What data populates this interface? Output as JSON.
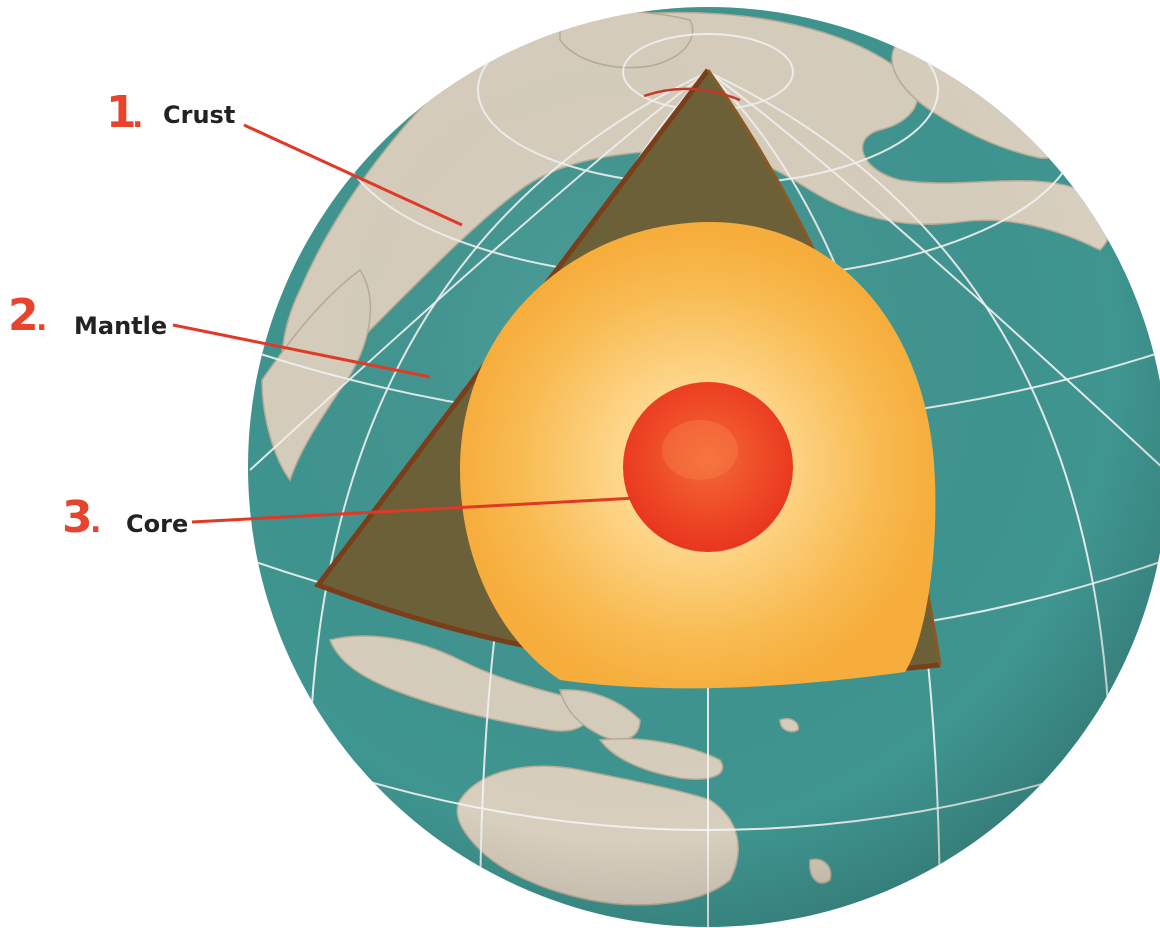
{
  "colors": {
    "ocean": "#3f9590",
    "land": "#d8cfbe",
    "land_shadow": "#b9ad96",
    "grid": "#f4f4f4",
    "crust": "#7a3f1a",
    "mantle": "#6b6038",
    "outer_core": "#f6ad3b",
    "outer_core_light": "#fdd68a",
    "inner_core": "#e8351f",
    "inner_core_light": "#f46a3a",
    "label_number": "#e8442d",
    "label_text": "#222222",
    "leader_line": "#e03a26"
  },
  "labels": [
    {
      "number": "1",
      "dot": ".",
      "name": "Crust"
    },
    {
      "number": "2",
      "dot": ".",
      "name": "Mantle"
    },
    {
      "number": "3",
      "dot": ".",
      "name": "Core"
    }
  ]
}
